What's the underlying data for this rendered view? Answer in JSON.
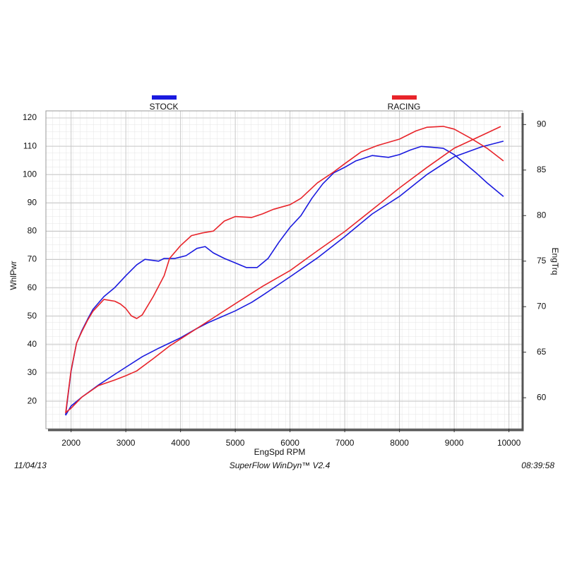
{
  "chart_data": {
    "type": "line",
    "xlabel": "EngSpd  RPM",
    "ylabel": "WhlPwr",
    "y2label": "EngTrq",
    "footer": {
      "date": "11/04/13",
      "software": "SuperFlow WinDyn™ V2.4",
      "time": "08:39:58"
    },
    "xlim": [
      1540,
      10250
    ],
    "xticks": [
      2000,
      3000,
      4000,
      5000,
      6000,
      7000,
      8000,
      9000,
      10000
    ],
    "ylim": [
      10.3,
      122.5
    ],
    "yticks": [
      20,
      30,
      40,
      50,
      60,
      70,
      80,
      90,
      100,
      110,
      120
    ],
    "y2lim": [
      56.6,
      91.5
    ],
    "y2ticks": [
      60,
      65,
      70,
      75,
      80,
      85,
      90
    ],
    "grid": true,
    "series": [
      {
        "name": "STOCK",
        "color": "#1a1adf",
        "lines": [
          {
            "axis": "y",
            "x": [
              1900,
              2000,
              2200,
              2500,
              2800,
              3000,
              3300,
              3600,
              4000,
              4300,
              4500,
              5000,
              5300,
              5500,
              6000,
              6500,
              7000,
              7500,
              8000,
              8500,
              9000,
              9500,
              9900
            ],
            "values": [
              15.0,
              18.3,
              21.5,
              25.7,
              29.5,
              32,
              35.7,
              38.7,
              42.4,
              45.7,
              47.7,
              51.9,
              54.9,
              57.4,
              63.9,
              70.6,
              78.1,
              86.1,
              92.3,
              100,
              106.3,
              109.8,
              111.8
            ]
          },
          {
            "axis": "y2",
            "x": [
              1900,
              2000,
              2100,
              2200,
              2300,
              2400,
              2600,
              2800,
              3000,
              3200,
              3350,
              3600,
              3700,
              3900,
              4100,
              4300,
              4450,
              4600,
              4800,
              5000,
              5200,
              5400,
              5600,
              5800,
              6000,
              6200,
              6400,
              6600,
              6800,
              7000,
              7200,
              7500,
              7800,
              8000,
              8200,
              8400,
              8600,
              8800,
              9000,
              9200,
              9400,
              9600,
              9800,
              9900
            ],
            "values": [
              58.1,
              62.9,
              66,
              67.4,
              68.6,
              69.7,
              71.1,
              72.1,
              73.4,
              74.6,
              75.2,
              75.0,
              75.3,
              75.3,
              75.6,
              76.4,
              76.6,
              75.9,
              75.3,
              74.8,
              74.3,
              74.3,
              75.3,
              77.1,
              78.7,
              80,
              81.9,
              83.5,
              84.7,
              85.3,
              86,
              86.6,
              86.4,
              86.7,
              87.2,
              87.6,
              87.5,
              87.4,
              86.7,
              85.7,
              84.7,
              83.6,
              82.6,
              82.1
            ]
          }
        ]
      },
      {
        "name": "RACING",
        "color": "#e8242a",
        "lines": [
          {
            "axis": "y",
            "x": [
              1900,
              2000,
              2200,
              2500,
              2800,
              3000,
              3200,
              3500,
              3800,
              4000,
              4500,
              5000,
              5500,
              6000,
              6500,
              7000,
              7500,
              8000,
              8500,
              9000,
              9500,
              9850
            ],
            "values": [
              16,
              17.5,
              21.5,
              25.5,
              27.5,
              29,
              30.7,
              35,
              39.5,
              42,
              48.2,
              54.4,
              60.6,
              66.1,
              73.1,
              79.9,
              87.6,
              95.3,
              102.5,
              109.3,
              113.8,
              117
            ]
          },
          {
            "axis": "y2",
            "x": [
              1900,
              2000,
              2100,
              2200,
              2300,
              2400,
              2600,
              2800,
              2900,
              3000,
              3100,
              3200,
              3300,
              3500,
              3700,
              3800,
              4000,
              4200,
              4400,
              4600,
              4800,
              5000,
              5300,
              5500,
              5700,
              6000,
              6200,
              6500,
              6800,
              7000,
              7300,
              7600,
              8000,
              8300,
              8500,
              8800,
              9000,
              9300,
              9600,
              9900
            ],
            "values": [
              58.3,
              63,
              66,
              67.3,
              68.5,
              69.5,
              70.8,
              70.6,
              70.3,
              69.8,
              69,
              68.7,
              69.1,
              71.1,
              73.4,
              75.3,
              76.7,
              77.8,
              78.1,
              78.3,
              79.4,
              79.9,
              79.8,
              80.2,
              80.7,
              81.2,
              81.9,
              83.6,
              84.8,
              85.7,
              87,
              87.7,
              88.4,
              89.3,
              89.7,
              89.8,
              89.5,
              88.5,
              87.4,
              86
            ]
          }
        ]
      }
    ]
  }
}
